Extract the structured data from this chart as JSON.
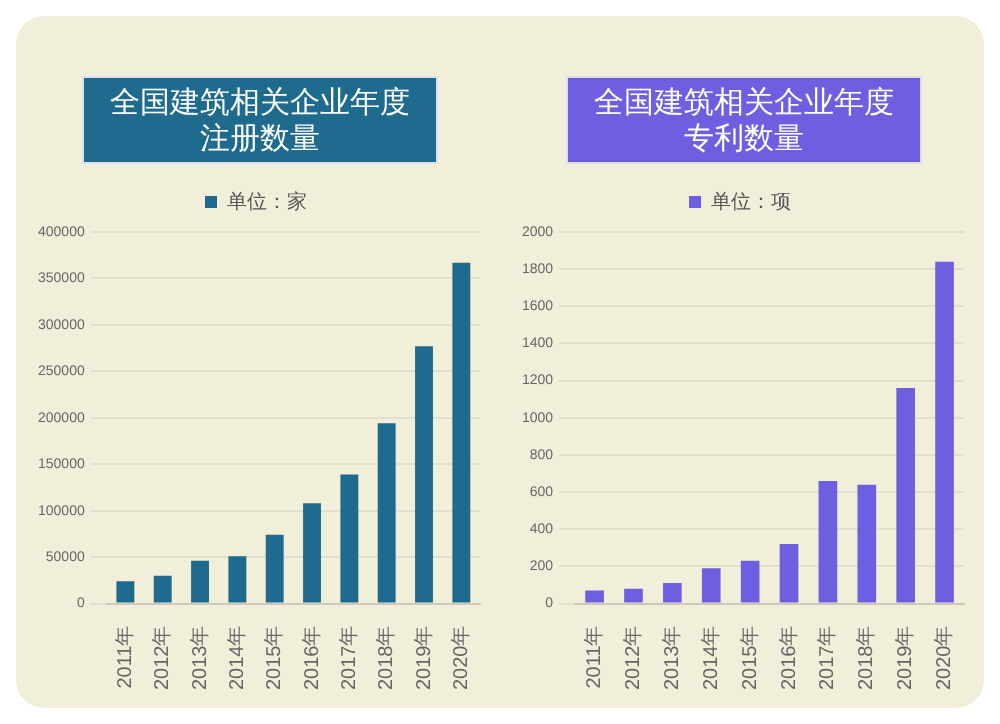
{
  "chart_data": [
    {
      "type": "bar",
      "title": "全国建筑相关企业年度注册数量",
      "categories": [
        "2011年",
        "2012年",
        "2013年",
        "2014年",
        "2015年",
        "2016年",
        "2017年",
        "2018年",
        "2019年",
        "2020年"
      ],
      "series": [
        {
          "name": "单位：家",
          "color": "#1f6b8e",
          "values": [
            24000,
            30000,
            46000,
            51000,
            74000,
            108000,
            139000,
            194000,
            277000,
            367000
          ]
        }
      ],
      "ylim": [
        0,
        400000
      ],
      "yticks": [
        0,
        50000,
        100000,
        150000,
        200000,
        250000,
        300000,
        350000,
        400000
      ],
      "grid": "y",
      "legend": "top"
    },
    {
      "type": "bar",
      "title": "全国建筑相关企业年度专利数量",
      "categories": [
        "2011年",
        "2012年",
        "2013年",
        "2014年",
        "2015年",
        "2016年",
        "2017年",
        "2018年",
        "2019年",
        "2020年"
      ],
      "series": [
        {
          "name": "单位：项",
          "color": "#6e5fe0",
          "values": [
            70,
            80,
            110,
            190,
            230,
            320,
            660,
            640,
            1160,
            1840
          ]
        }
      ],
      "ylim": [
        0,
        2000
      ],
      "yticks": [
        0,
        200,
        400,
        600,
        800,
        1000,
        1200,
        1400,
        1600,
        1800,
        2000
      ],
      "grid": "y",
      "legend": "top"
    }
  ]
}
